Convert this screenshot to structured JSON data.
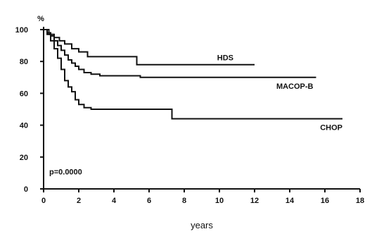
{
  "chart_data": {
    "type": "line",
    "title": "",
    "xlabel": "years",
    "ylabel": "%",
    "xlim": [
      0,
      18
    ],
    "ylim": [
      0,
      100
    ],
    "x_ticks": [
      0,
      2,
      4,
      6,
      8,
      10,
      12,
      14,
      16,
      18
    ],
    "y_ticks": [
      0,
      20,
      40,
      60,
      80,
      100
    ],
    "grid": false,
    "annotation": "p=0.0000",
    "series": [
      {
        "name": "HDS",
        "step": true,
        "points": [
          [
            0,
            100
          ],
          [
            0.3,
            97
          ],
          [
            0.6,
            95
          ],
          [
            0.9,
            93
          ],
          [
            1.2,
            91
          ],
          [
            1.6,
            88
          ],
          [
            2.0,
            86
          ],
          [
            2.5,
            83
          ],
          [
            5.3,
            83
          ],
          [
            5.3,
            78
          ],
          [
            12.0,
            78
          ]
        ]
      },
      {
        "name": "MACOP-B",
        "step": true,
        "points": [
          [
            0,
            100
          ],
          [
            0.2,
            98
          ],
          [
            0.4,
            96
          ],
          [
            0.6,
            93
          ],
          [
            0.8,
            90
          ],
          [
            1.0,
            87
          ],
          [
            1.2,
            84
          ],
          [
            1.4,
            81
          ],
          [
            1.6,
            79
          ],
          [
            1.8,
            77
          ],
          [
            2.0,
            75
          ],
          [
            2.3,
            73
          ],
          [
            2.7,
            72
          ],
          [
            3.2,
            71
          ],
          [
            4.0,
            71
          ],
          [
            5.5,
            70
          ],
          [
            15.5,
            70
          ]
        ]
      },
      {
        "name": "CHOP",
        "step": true,
        "points": [
          [
            0,
            100
          ],
          [
            0.2,
            97
          ],
          [
            0.4,
            93
          ],
          [
            0.6,
            88
          ],
          [
            0.8,
            82
          ],
          [
            1.0,
            75
          ],
          [
            1.2,
            68
          ],
          [
            1.4,
            64
          ],
          [
            1.6,
            61
          ],
          [
            1.8,
            56
          ],
          [
            2.0,
            53
          ],
          [
            2.3,
            51
          ],
          [
            2.7,
            50
          ],
          [
            7.3,
            50
          ],
          [
            7.3,
            44
          ],
          [
            17.0,
            44
          ]
        ]
      }
    ]
  }
}
